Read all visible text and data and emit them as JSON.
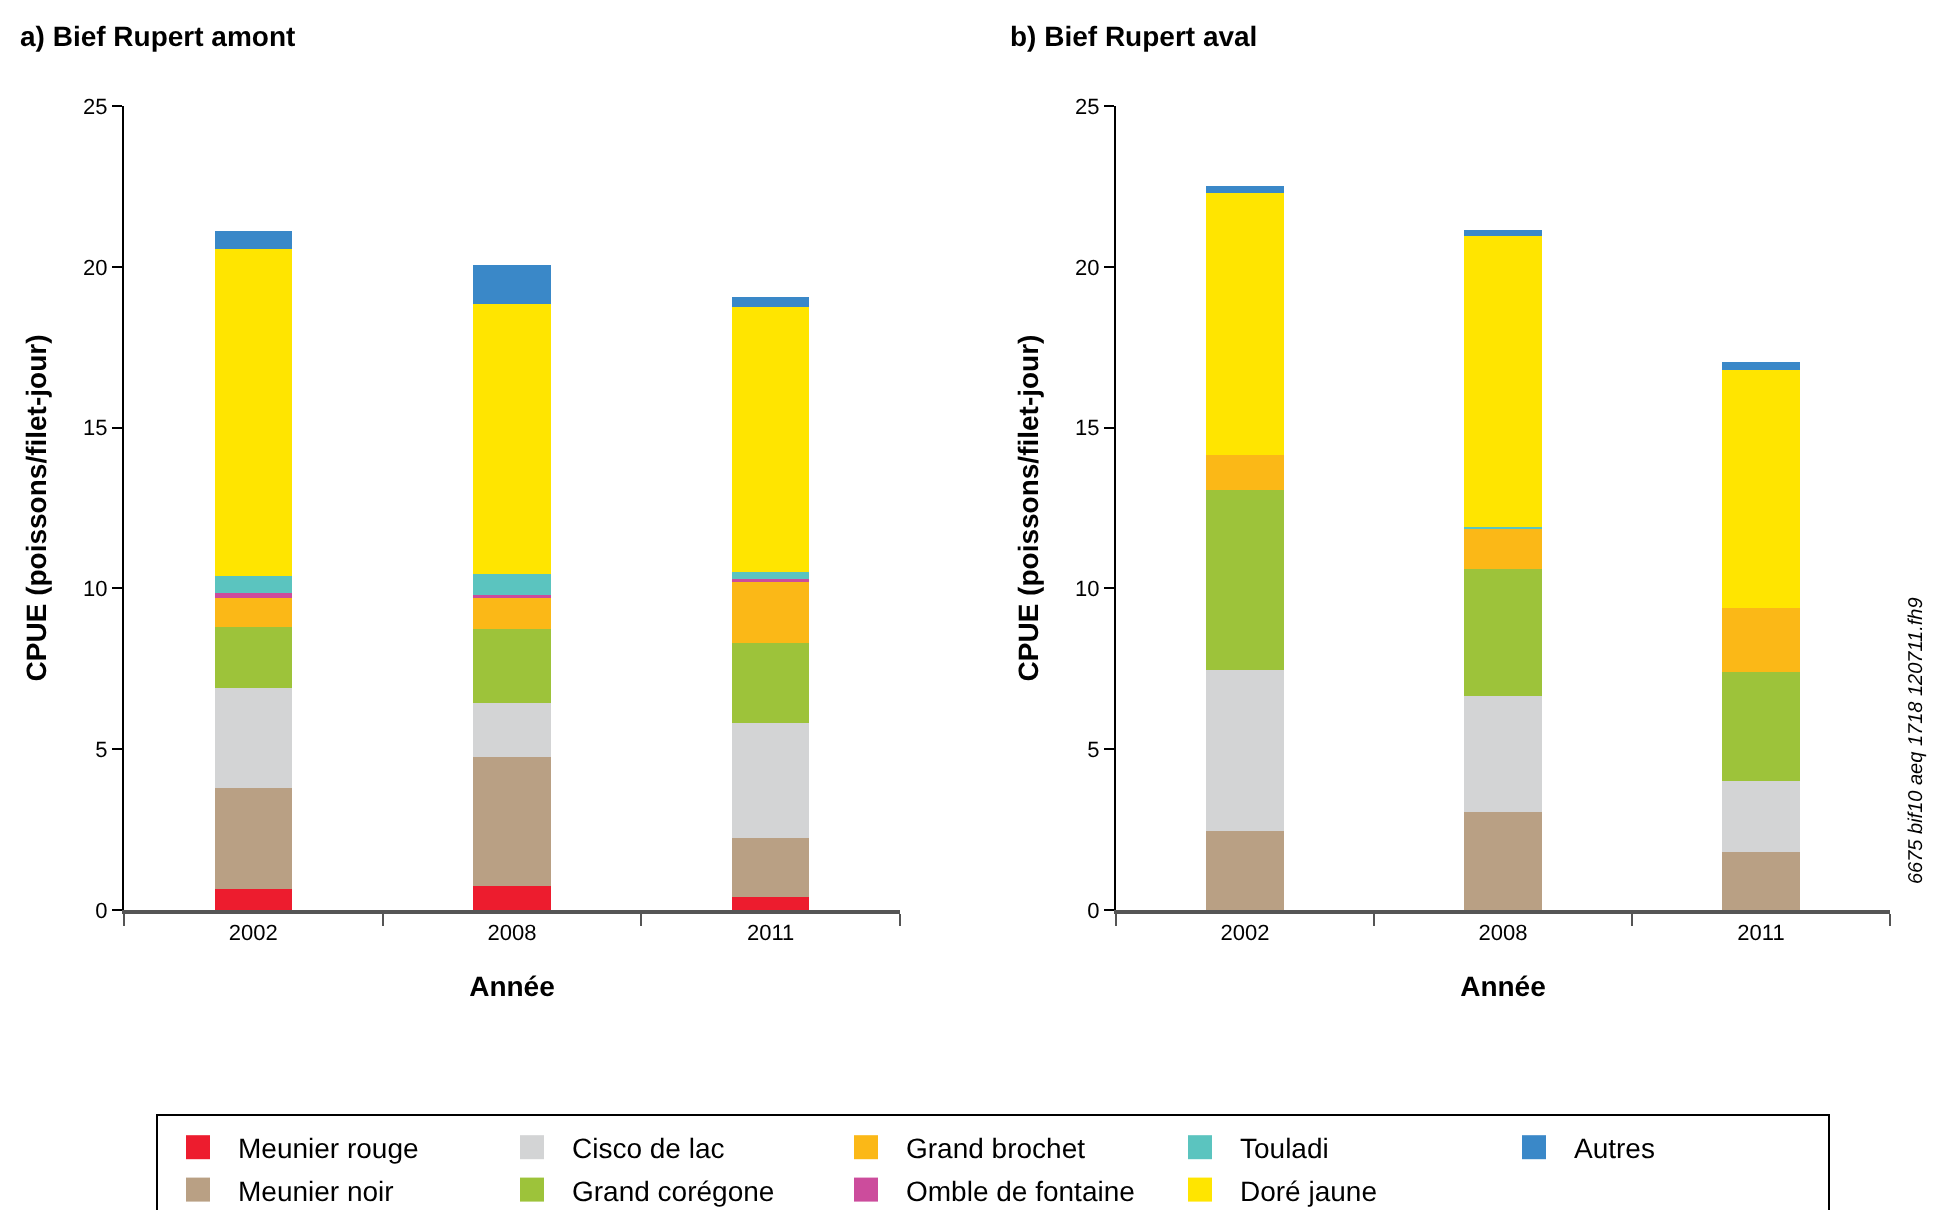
{
  "chart_data": [
    {
      "type": "bar",
      "title": "a) Bief Rupert amont",
      "xlabel": "Année",
      "ylabel": "CPUE (poissons/filet-jour)",
      "categories": [
        "2002",
        "2008",
        "2011"
      ],
      "stacked": true,
      "ylim": [
        0,
        25
      ],
      "yticks": [
        0,
        5,
        10,
        15,
        20,
        25
      ],
      "grid": false,
      "legend": "bottom",
      "series": [
        {
          "name": "Meunier rouge",
          "color": "#ed1c2e",
          "values": [
            0.65,
            0.75,
            0.4
          ]
        },
        {
          "name": "Meunier noir",
          "color": "#b9a084",
          "values": [
            3.15,
            4.0,
            1.85
          ]
        },
        {
          "name": "Cisco de lac",
          "color": "#d3d4d5",
          "values": [
            3.1,
            1.7,
            3.55
          ]
        },
        {
          "name": "Grand corégone",
          "color": "#9dc33a",
          "values": [
            1.9,
            2.3,
            2.5
          ]
        },
        {
          "name": "Grand brochet",
          "color": "#fbb817",
          "values": [
            0.95,
            1.0,
            1.95
          ]
        },
        {
          "name": "Omble de fontaine",
          "color": "#cc4c9c",
          "values": [
            0.1,
            0.05,
            0.05
          ]
        },
        {
          "name": "Touladi",
          "color": "#5bc4bf",
          "values": [
            0.55,
            0.65,
            0.2
          ]
        },
        {
          "name": "Doré jaune",
          "color": "#ffe500",
          "values": [
            10.15,
            8.4,
            8.25
          ]
        },
        {
          "name": "Autres",
          "color": "#3a88c8",
          "values": [
            0.55,
            1.2,
            0.3
          ]
        }
      ]
    },
    {
      "type": "bar",
      "title": "b) Bief Rupert aval",
      "xlabel": "Année",
      "ylabel": "CPUE (poissons/filet-jour)",
      "categories": [
        "2002",
        "2008",
        "2011"
      ],
      "stacked": true,
      "ylim": [
        0,
        25
      ],
      "yticks": [
        0,
        5,
        10,
        15,
        20,
        25
      ],
      "grid": false,
      "annotations": [
        "6675 bif10 aeq 1718 120711.fh9"
      ],
      "series": [
        {
          "color": "#ed1c2e",
          "values": [
            null,
            null,
            null
          ]
        },
        {
          "color": "#b9a084",
          "values": [
            2.45,
            3.05,
            1.8
          ]
        },
        {
          "color": "#d3d4d5",
          "values": [
            5.0,
            3.6,
            2.2
          ]
        },
        {
          "color": "#9dc33a",
          "values": [
            5.6,
            3.95,
            3.4
          ]
        },
        {
          "color": "#fbb817",
          "values": [
            1.1,
            1.25,
            2.0
          ]
        },
        {
          "color": "#cc4c9c",
          "values": [
            null,
            null,
            null
          ]
        },
        {
          "color": "#5bc4bf",
          "values": [
            null,
            0.05,
            null
          ]
        },
        {
          "color": "#ffe500",
          "values": [
            8.15,
            9.05,
            7.4
          ]
        },
        {
          "color": "#3a88c8",
          "values": [
            0.2,
            0.2,
            0.25
          ]
        }
      ]
    }
  ]
}
